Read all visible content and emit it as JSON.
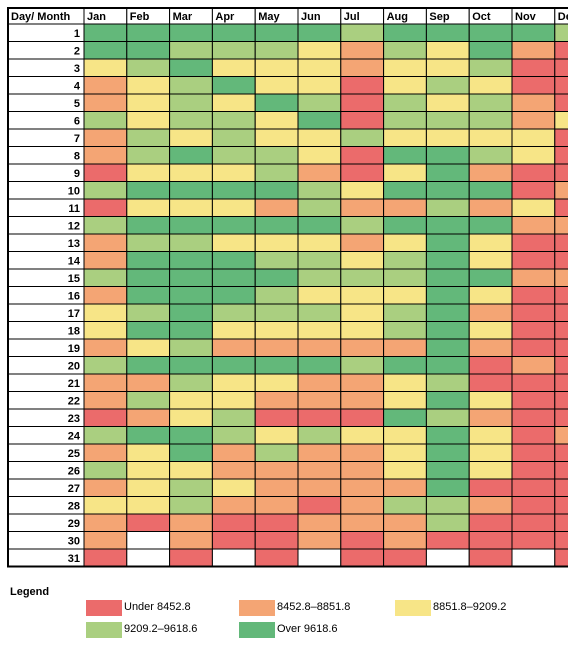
{
  "colors": {
    "under": "#EB6B6B",
    "low": "#F4A574",
    "mid": "#F7E587",
    "high": "#AACF80",
    "over": "#63B87A",
    "empty": "#FFFFFF",
    "grid": "#000000"
  },
  "chart_data": {
    "type": "heatmap",
    "corner_label": "Day/ Month",
    "columns": [
      "Jan",
      "Feb",
      "Mar",
      "Apr",
      "May",
      "Jun",
      "Jul",
      "Aug",
      "Sep",
      "Oct",
      "Nov",
      "Dec"
    ],
    "rows": [
      "1",
      "2",
      "3",
      "4",
      "5",
      "6",
      "7",
      "8",
      "9",
      "10",
      "11",
      "12",
      "13",
      "14",
      "15",
      "16",
      "17",
      "18",
      "19",
      "20",
      "21",
      "22",
      "23",
      "24",
      "25",
      "26",
      "27",
      "28",
      "29",
      "30",
      "31"
    ],
    "category_codes": {
      "0": "Under 8452.8",
      "1": "8452.8–8851.8",
      "2": "8851.8–9209.2",
      "3": "9209.2–9618.6",
      "4": "Over 9618.6"
    },
    "values": [
      [
        4,
        4,
        4,
        4,
        4,
        4,
        3,
        4,
        4,
        4,
        4,
        3
      ],
      [
        4,
        4,
        3,
        3,
        3,
        2,
        1,
        3,
        2,
        4,
        1,
        0
      ],
      [
        2,
        3,
        4,
        2,
        2,
        2,
        1,
        2,
        2,
        3,
        0,
        0
      ],
      [
        1,
        2,
        3,
        4,
        2,
        2,
        0,
        2,
        3,
        2,
        0,
        0
      ],
      [
        1,
        2,
        3,
        2,
        4,
        3,
        0,
        3,
        2,
        3,
        1,
        0
      ],
      [
        3,
        2,
        3,
        3,
        2,
        4,
        0,
        3,
        3,
        3,
        1,
        2
      ],
      [
        1,
        3,
        2,
        3,
        2,
        2,
        3,
        2,
        2,
        2,
        2,
        0
      ],
      [
        1,
        3,
        4,
        3,
        3,
        2,
        0,
        4,
        4,
        3,
        2,
        0
      ],
      [
        0,
        2,
        2,
        2,
        3,
        1,
        0,
        2,
        4,
        1,
        0,
        0
      ],
      [
        3,
        4,
        4,
        4,
        4,
        3,
        2,
        4,
        4,
        4,
        0,
        1
      ],
      [
        0,
        2,
        2,
        2,
        1,
        3,
        1,
        1,
        3,
        1,
        2,
        0
      ],
      [
        3,
        4,
        4,
        4,
        4,
        4,
        3,
        4,
        4,
        4,
        1,
        1
      ],
      [
        1,
        3,
        3,
        2,
        2,
        2,
        1,
        2,
        4,
        2,
        0,
        0
      ],
      [
        1,
        4,
        4,
        4,
        3,
        3,
        2,
        3,
        4,
        2,
        0,
        0
      ],
      [
        3,
        4,
        4,
        4,
        4,
        3,
        3,
        3,
        4,
        4,
        1,
        1
      ],
      [
        1,
        4,
        4,
        4,
        3,
        2,
        2,
        2,
        4,
        2,
        0,
        0
      ],
      [
        2,
        3,
        4,
        3,
        3,
        3,
        2,
        3,
        4,
        1,
        0,
        0
      ],
      [
        2,
        4,
        4,
        2,
        2,
        2,
        2,
        3,
        4,
        2,
        0,
        0
      ],
      [
        1,
        2,
        3,
        1,
        1,
        1,
        1,
        1,
        4,
        1,
        0,
        0
      ],
      [
        3,
        4,
        4,
        4,
        4,
        4,
        3,
        4,
        4,
        0,
        1,
        0
      ],
      [
        1,
        1,
        3,
        2,
        2,
        1,
        1,
        2,
        3,
        0,
        0,
        0
      ],
      [
        1,
        3,
        2,
        2,
        1,
        1,
        1,
        2,
        4,
        2,
        0,
        0
      ],
      [
        0,
        1,
        2,
        3,
        0,
        0,
        0,
        4,
        3,
        1,
        0,
        0
      ],
      [
        3,
        4,
        4,
        3,
        2,
        3,
        2,
        2,
        4,
        2,
        0,
        1
      ],
      [
        1,
        2,
        4,
        1,
        3,
        1,
        1,
        2,
        4,
        2,
        0,
        0
      ],
      [
        3,
        2,
        2,
        1,
        1,
        1,
        1,
        2,
        4,
        2,
        0,
        0
      ],
      [
        1,
        2,
        3,
        2,
        1,
        1,
        1,
        1,
        4,
        0,
        0,
        0
      ],
      [
        2,
        2,
        3,
        1,
        1,
        0,
        1,
        3,
        3,
        1,
        0,
        0
      ],
      [
        1,
        0,
        1,
        0,
        0,
        1,
        1,
        1,
        3,
        0,
        0,
        0
      ],
      [
        1,
        null,
        1,
        0,
        0,
        1,
        0,
        1,
        0,
        0,
        0,
        0
      ],
      [
        0,
        null,
        0,
        null,
        0,
        null,
        0,
        0,
        null,
        0,
        null,
        0
      ]
    ]
  },
  "legend": {
    "title": "Legend",
    "items": [
      {
        "label": "Under 8452.8",
        "color": "#EB6B6B"
      },
      {
        "label": "8452.8–8851.8",
        "color": "#F4A574"
      },
      {
        "label": "8851.8–9209.2",
        "color": "#F7E587"
      },
      {
        "label": "9209.2–9618.6",
        "color": "#AACF80"
      },
      {
        "label": "Over 9618.6",
        "color": "#63B87A"
      }
    ]
  }
}
